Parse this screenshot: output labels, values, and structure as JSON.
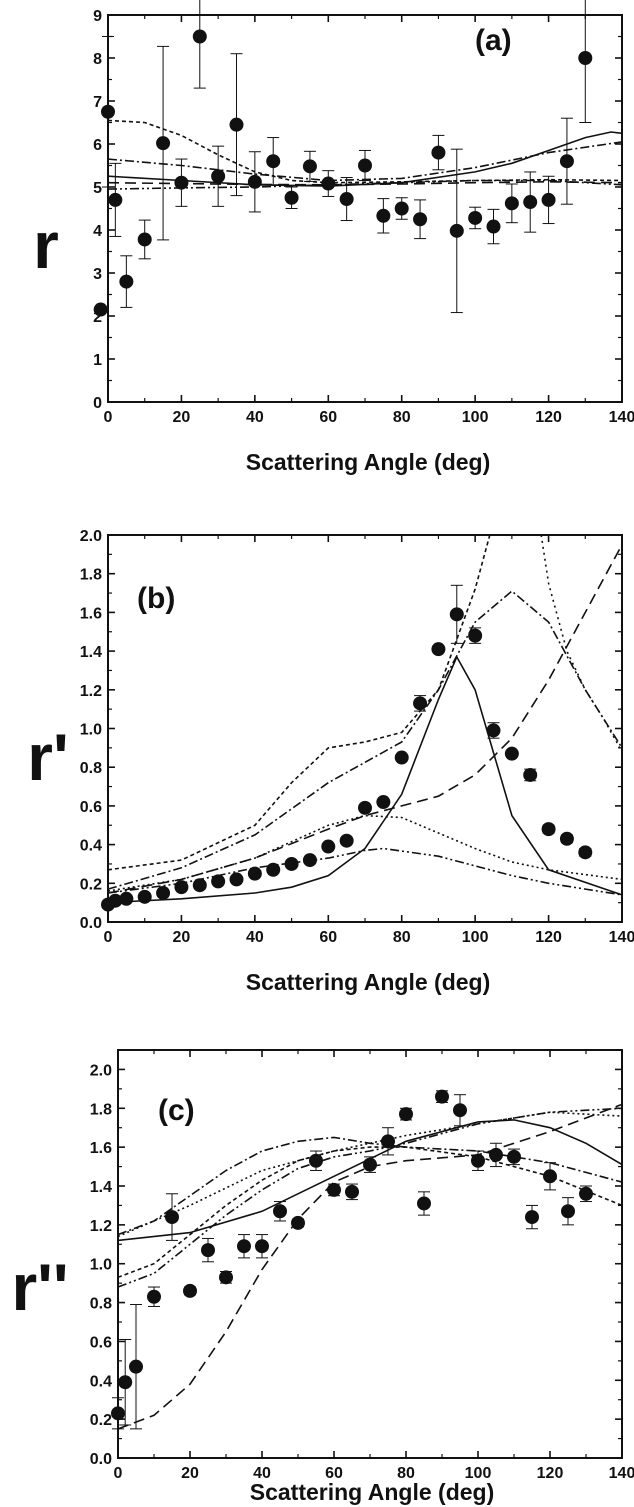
{
  "chart_data": [
    {
      "panel": "a",
      "type": "scatter",
      "panel_label": "(a)",
      "xlabel": "Scattering Angle (deg)",
      "ylabel": "r",
      "xlim": [
        0,
        140
      ],
      "ylim": [
        0,
        9
      ],
      "xticks": [
        "0",
        "20",
        "40",
        "60",
        "80",
        "100",
        "120",
        "140"
      ],
      "yticks": [
        "0",
        "1",
        "2",
        "3",
        "4",
        "5",
        "6",
        "7",
        "8",
        "9"
      ],
      "grid": false,
      "series": [
        {
          "kind": "points",
          "x": [
            -2,
            0,
            2,
            5,
            10,
            15,
            20,
            25,
            30,
            35,
            40,
            45,
            50,
            55,
            60,
            65,
            70,
            75,
            80,
            85,
            90,
            95,
            100,
            105,
            110,
            115,
            120,
            125,
            130
          ],
          "y": [
            2.15,
            6.75,
            4.7,
            2.8,
            3.78,
            6.02,
            5.1,
            8.5,
            5.25,
            6.45,
            5.12,
            5.6,
            4.75,
            5.48,
            5.08,
            4.72,
            5.5,
            4.33,
            4.5,
            4.25,
            5.8,
            3.98,
            4.28,
            4.08,
            4.62,
            4.65,
            4.7,
            5.6,
            8.0
          ],
          "err": [
            0,
            1.75,
            0.85,
            0.6,
            0.45,
            2.25,
            0.55,
            1.2,
            0.7,
            1.65,
            0.7,
            0.55,
            0.25,
            0.35,
            0.3,
            0.5,
            0.35,
            0.4,
            0.25,
            0.45,
            0.4,
            1.9,
            0.25,
            0.4,
            0.45,
            0.7,
            0.55,
            1.0,
            1.5
          ]
        },
        {
          "kind": "line",
          "style": "solid",
          "x": [
            0,
            20,
            40,
            60,
            80,
            100,
            110,
            120,
            130,
            137,
            140
          ],
          "y": [
            5.25,
            5.15,
            5.05,
            5.02,
            5.1,
            5.35,
            5.55,
            5.85,
            6.15,
            6.28,
            6.25
          ]
        },
        {
          "kind": "line",
          "style": "dash",
          "x": [
            0,
            20,
            40,
            60,
            80,
            100,
            120,
            140
          ],
          "y": [
            5.1,
            5.08,
            5.06,
            5.05,
            5.07,
            5.1,
            5.12,
            5.1
          ]
        },
        {
          "kind": "line",
          "style": "shortdash",
          "x": [
            0,
            10,
            20,
            30,
            40,
            50,
            60,
            80,
            100,
            120,
            140
          ],
          "y": [
            6.55,
            6.5,
            6.2,
            5.75,
            5.35,
            5.15,
            5.1,
            5.12,
            5.15,
            5.17,
            5.15
          ]
        },
        {
          "kind": "line",
          "style": "dashdot",
          "x": [
            0,
            20,
            40,
            60,
            80,
            100,
            120,
            140
          ],
          "y": [
            5.65,
            5.5,
            5.3,
            5.15,
            5.2,
            5.45,
            5.8,
            6.05
          ]
        },
        {
          "kind": "line",
          "style": "dashdotdot",
          "x": [
            0,
            20,
            40,
            60,
            80,
            100,
            120,
            140
          ],
          "y": [
            4.95,
            4.98,
            5.0,
            5.05,
            5.1,
            5.15,
            5.15,
            5.05
          ]
        }
      ]
    },
    {
      "panel": "b",
      "type": "scatter",
      "panel_label": "(b)",
      "xlabel": "Scattering Angle (deg)",
      "ylabel": "r'",
      "xlim": [
        0,
        140
      ],
      "ylim": [
        0,
        2.0
      ],
      "xticks": [
        "0",
        "20",
        "40",
        "60",
        "80",
        "100",
        "120",
        "140"
      ],
      "yticks": [
        "0.0",
        "0.2",
        "0.4",
        "0.6",
        "0.8",
        "1.0",
        "1.2",
        "1.4",
        "1.6",
        "1.8",
        "2.0"
      ],
      "grid": false,
      "series": [
        {
          "kind": "points",
          "x": [
            0,
            2,
            5,
            10,
            15,
            20,
            25,
            30,
            35,
            40,
            45,
            50,
            55,
            60,
            65,
            70,
            75,
            80,
            85,
            90,
            95,
            100,
            105,
            110,
            115,
            120,
            125,
            130
          ],
          "y": [
            0.09,
            0.11,
            0.12,
            0.13,
            0.15,
            0.18,
            0.19,
            0.21,
            0.22,
            0.25,
            0.27,
            0.3,
            0.32,
            0.39,
            0.42,
            0.59,
            0.62,
            0.85,
            1.13,
            1.41,
            1.59,
            1.48,
            0.99,
            0.87,
            0.76,
            0.48,
            0.43,
            0.36
          ],
          "err": [
            0,
            0,
            0,
            0,
            0,
            0,
            0,
            0,
            0,
            0,
            0,
            0,
            0,
            0,
            0,
            0,
            0,
            0,
            0.04,
            0,
            0.15,
            0.04,
            0.04,
            0,
            0.03,
            0.02,
            0.02,
            0.02
          ]
        },
        {
          "kind": "line",
          "style": "solid",
          "x": [
            0,
            20,
            40,
            50,
            60,
            70,
            80,
            90,
            95,
            100,
            110,
            120,
            140
          ],
          "y": [
            0.1,
            0.12,
            0.15,
            0.18,
            0.24,
            0.38,
            0.66,
            1.15,
            1.37,
            1.2,
            0.55,
            0.27,
            0.14
          ]
        },
        {
          "kind": "line",
          "style": "dash",
          "x": [
            0,
            20,
            40,
            60,
            70,
            80,
            90,
            100,
            110,
            120,
            130,
            140
          ],
          "y": [
            0.15,
            0.22,
            0.33,
            0.48,
            0.55,
            0.6,
            0.65,
            0.76,
            0.95,
            1.25,
            1.6,
            1.95
          ]
        },
        {
          "kind": "line",
          "style": "shortdash",
          "x": [
            0,
            20,
            40,
            50,
            60,
            70,
            80,
            90,
            100,
            104,
            110
          ],
          "y": [
            0.27,
            0.32,
            0.5,
            0.72,
            0.9,
            0.93,
            0.98,
            1.2,
            1.72,
            2.0,
            2.3
          ]
        },
        {
          "kind": "line",
          "style": "dashdot",
          "x": [
            0,
            20,
            40,
            60,
            80,
            90,
            100,
            110,
            120,
            130,
            140
          ],
          "y": [
            0.17,
            0.28,
            0.45,
            0.72,
            0.93,
            1.2,
            1.55,
            1.71,
            1.55,
            1.2,
            0.9
          ]
        },
        {
          "kind": "line",
          "style": "dashdotdot",
          "x": [
            0,
            20,
            40,
            60,
            70,
            75,
            90,
            100,
            110,
            120,
            140
          ],
          "y": [
            0.15,
            0.2,
            0.28,
            0.33,
            0.37,
            0.38,
            0.34,
            0.29,
            0.24,
            0.2,
            0.14
          ]
        },
        {
          "kind": "line",
          "style": "dot",
          "x": [
            0,
            20,
            40,
            60,
            70,
            80,
            90,
            100,
            110,
            120,
            140
          ],
          "y": [
            0.16,
            0.22,
            0.33,
            0.5,
            0.55,
            0.54,
            0.46,
            0.38,
            0.31,
            0.27,
            0.22
          ]
        },
        {
          "kind": "line",
          "style": "dot2",
          "x": [
            118,
            120,
            125,
            130,
            135,
            140
          ],
          "y": [
            2.0,
            1.75,
            1.4,
            1.2,
            1.05,
            0.88
          ]
        }
      ]
    },
    {
      "panel": "c",
      "type": "scatter",
      "panel_label": "(c)",
      "xlabel": "Scattering Angle (deg)",
      "ylabel": "r''",
      "xlim": [
        0,
        140
      ],
      "ylim": [
        0,
        2.1
      ],
      "xticks": [
        "0",
        "20",
        "40",
        "60",
        "80",
        "100",
        "120",
        "140"
      ],
      "yticks": [
        "0.0",
        "0.2",
        "0.4",
        "0.6",
        "0.8",
        "1.0",
        "1.2",
        "1.4",
        "1.6",
        "1.8",
        "2.0"
      ],
      "grid": false,
      "series": [
        {
          "kind": "points",
          "x": [
            0,
            2,
            5,
            10,
            15,
            20,
            25,
            30,
            35,
            40,
            45,
            50,
            55,
            60,
            65,
            70,
            75,
            80,
            85,
            90,
            95,
            100,
            105,
            110,
            115,
            120,
            125,
            130
          ],
          "y": [
            0.23,
            0.39,
            0.47,
            0.83,
            1.24,
            0.86,
            1.07,
            0.93,
            1.09,
            1.09,
            1.27,
            1.21,
            1.53,
            1.38,
            1.37,
            1.51,
            1.63,
            1.77,
            1.31,
            1.86,
            1.79,
            1.53,
            1.56,
            1.55,
            1.24,
            1.45,
            1.27,
            1.36
          ],
          "err": [
            0.08,
            0.22,
            0.32,
            0.05,
            0.12,
            0.02,
            0.06,
            0.03,
            0.06,
            0.06,
            0.05,
            0.02,
            0.05,
            0.03,
            0.04,
            0.04,
            0.07,
            0.03,
            0.06,
            0.03,
            0.08,
            0.05,
            0.06,
            0.04,
            0.06,
            0.07,
            0.07,
            0.04
          ]
        },
        {
          "kind": "line",
          "style": "solid",
          "x": [
            0,
            20,
            40,
            60,
            80,
            100,
            110,
            120,
            130,
            140
          ],
          "y": [
            1.12,
            1.16,
            1.27,
            1.45,
            1.63,
            1.73,
            1.74,
            1.7,
            1.62,
            1.51
          ]
        },
        {
          "kind": "line",
          "style": "dash",
          "x": [
            0,
            10,
            20,
            30,
            40,
            50,
            60,
            70,
            80,
            100,
            120,
            140
          ],
          "y": [
            0.15,
            0.22,
            0.38,
            0.65,
            0.97,
            1.23,
            1.42,
            1.5,
            1.53,
            1.56,
            1.68,
            1.82
          ]
        },
        {
          "kind": "line",
          "style": "shortdash",
          "x": [
            0,
            10,
            20,
            30,
            40,
            50,
            60,
            70,
            80,
            100,
            120,
            140
          ],
          "y": [
            0.93,
            1.0,
            1.15,
            1.3,
            1.43,
            1.53,
            1.58,
            1.6,
            1.6,
            1.55,
            1.45,
            1.3
          ]
        },
        {
          "kind": "line",
          "style": "dashdot",
          "x": [
            0,
            10,
            20,
            30,
            40,
            50,
            60,
            70,
            80,
            100,
            120,
            140
          ],
          "y": [
            1.15,
            1.22,
            1.35,
            1.48,
            1.58,
            1.63,
            1.65,
            1.62,
            1.6,
            1.58,
            1.52,
            1.42
          ]
        },
        {
          "kind": "line",
          "style": "dashdotdot",
          "x": [
            0,
            10,
            20,
            30,
            40,
            50,
            60,
            70,
            80,
            100,
            120,
            140
          ],
          "y": [
            0.88,
            0.95,
            1.1,
            1.25,
            1.38,
            1.49,
            1.55,
            1.58,
            1.62,
            1.72,
            1.78,
            1.8
          ]
        },
        {
          "kind": "line",
          "style": "dot",
          "x": [
            0,
            20,
            40,
            60,
            80,
            100,
            120,
            140
          ],
          "y": [
            1.14,
            1.3,
            1.48,
            1.58,
            1.66,
            1.72,
            1.78,
            1.76
          ]
        }
      ]
    }
  ]
}
